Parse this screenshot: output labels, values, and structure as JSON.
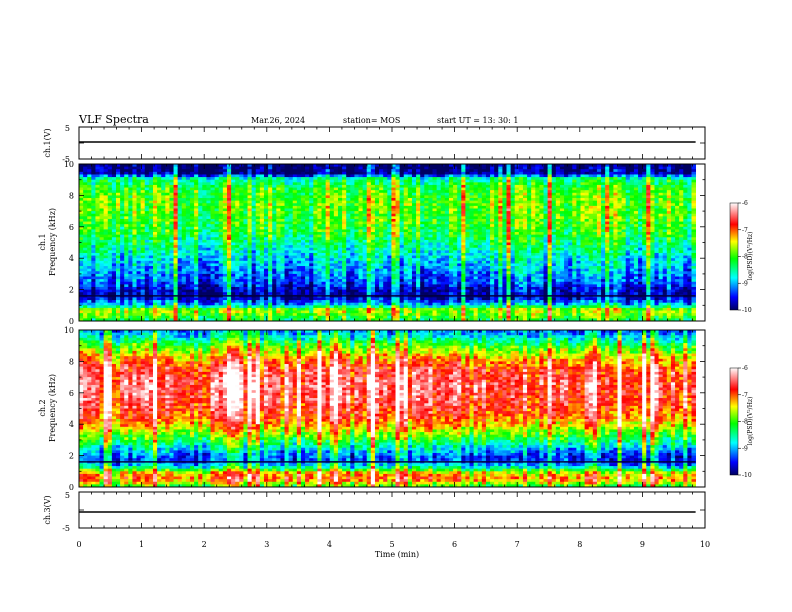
{
  "header": {
    "title": "VLF Spectra",
    "date": "Mar.26, 2024",
    "station": "station= MOS",
    "start": "start  UT =   13: 30: 1"
  },
  "chart_data": [
    {
      "type": "line",
      "id": "ch1-voltage",
      "ylabel": "ch.1(V)",
      "ylim": [
        -5,
        5
      ],
      "yticks": [
        "5",
        "-5"
      ],
      "x": [
        0,
        10
      ],
      "values": [
        0,
        0
      ],
      "grid": false
    },
    {
      "type": "heatmap",
      "id": "ch1-spectrogram",
      "ylabel": "ch.1\nFrequency (kHz)",
      "ylabel_lines": [
        "ch.1",
        "Frequency (kHz)"
      ],
      "xlim": [
        0,
        10
      ],
      "ylim": [
        0,
        10
      ],
      "yticks": [
        "0",
        "2",
        "4",
        "6",
        "8",
        "10"
      ],
      "data_xmax": 9.85,
      "colorbar": {
        "label": "log(PSD)(V²/Hz)",
        "range": [
          -10,
          -6
        ],
        "ticks": [
          "-6",
          "-7",
          "-8",
          "-9",
          "-10"
        ]
      },
      "band_profile_khz": [
        {
          "f": 0.0,
          "v": -8.3
        },
        {
          "f": 0.3,
          "v": -8.0
        },
        {
          "f": 0.7,
          "v": -7.6
        },
        {
          "f": 1.0,
          "v": -8.9
        },
        {
          "f": 1.5,
          "v": -9.8
        },
        {
          "f": 2.0,
          "v": -9.7
        },
        {
          "f": 2.5,
          "v": -9.3
        },
        {
          "f": 3.5,
          "v": -9.0
        },
        {
          "f": 4.5,
          "v": -8.6
        },
        {
          "f": 5.5,
          "v": -8.2
        },
        {
          "f": 6.5,
          "v": -8.0
        },
        {
          "f": 7.5,
          "v": -7.9
        },
        {
          "f": 8.5,
          "v": -8.1
        },
        {
          "f": 9.1,
          "v": -8.6
        },
        {
          "f": 9.4,
          "v": -9.9
        },
        {
          "f": 10.0,
          "v": -10.0
        }
      ]
    },
    {
      "type": "heatmap",
      "id": "ch2-spectrogram",
      "ylabel": "ch.2\nFrequency (kHz)",
      "ylabel_lines": [
        "ch.2",
        "Frequency (kHz)"
      ],
      "xlim": [
        0,
        10
      ],
      "ylim": [
        0,
        10
      ],
      "yticks": [
        "0",
        "2",
        "4",
        "6",
        "8",
        "10"
      ],
      "data_xmax": 9.85,
      "colorbar": {
        "label": "log(PSD)(V²/Hz)",
        "range": [
          -10,
          -6
        ],
        "ticks": [
          "-6",
          "-7",
          "-8",
          "-9",
          "-10"
        ]
      },
      "band_profile_khz": [
        {
          "f": 0.0,
          "v": -8.2
        },
        {
          "f": 0.5,
          "v": -7.0
        },
        {
          "f": 0.9,
          "v": -7.4
        },
        {
          "f": 1.3,
          "v": -8.8
        },
        {
          "f": 1.8,
          "v": -9.4
        },
        {
          "f": 2.3,
          "v": -9.0
        },
        {
          "f": 3.0,
          "v": -8.2
        },
        {
          "f": 3.8,
          "v": -7.4
        },
        {
          "f": 4.5,
          "v": -6.9
        },
        {
          "f": 5.5,
          "v": -6.6
        },
        {
          "f": 6.5,
          "v": -6.5
        },
        {
          "f": 7.5,
          "v": -6.7
        },
        {
          "f": 8.3,
          "v": -7.3
        },
        {
          "f": 9.0,
          "v": -8.0
        },
        {
          "f": 9.6,
          "v": -8.8
        },
        {
          "f": 10.0,
          "v": -9.2
        }
      ]
    },
    {
      "type": "line",
      "id": "ch3-voltage",
      "ylabel": "ch.3(V)",
      "ylim": [
        -5,
        5
      ],
      "yticks": [
        "5",
        "-5"
      ],
      "x": [
        0,
        10
      ],
      "values": [
        0,
        0
      ],
      "grid": false
    }
  ],
  "xaxis": {
    "label": "Time (min)",
    "range": [
      0,
      10
    ],
    "ticks": [
      "0",
      "1",
      "2",
      "3",
      "4",
      "5",
      "6",
      "7",
      "8",
      "9",
      "10"
    ]
  }
}
